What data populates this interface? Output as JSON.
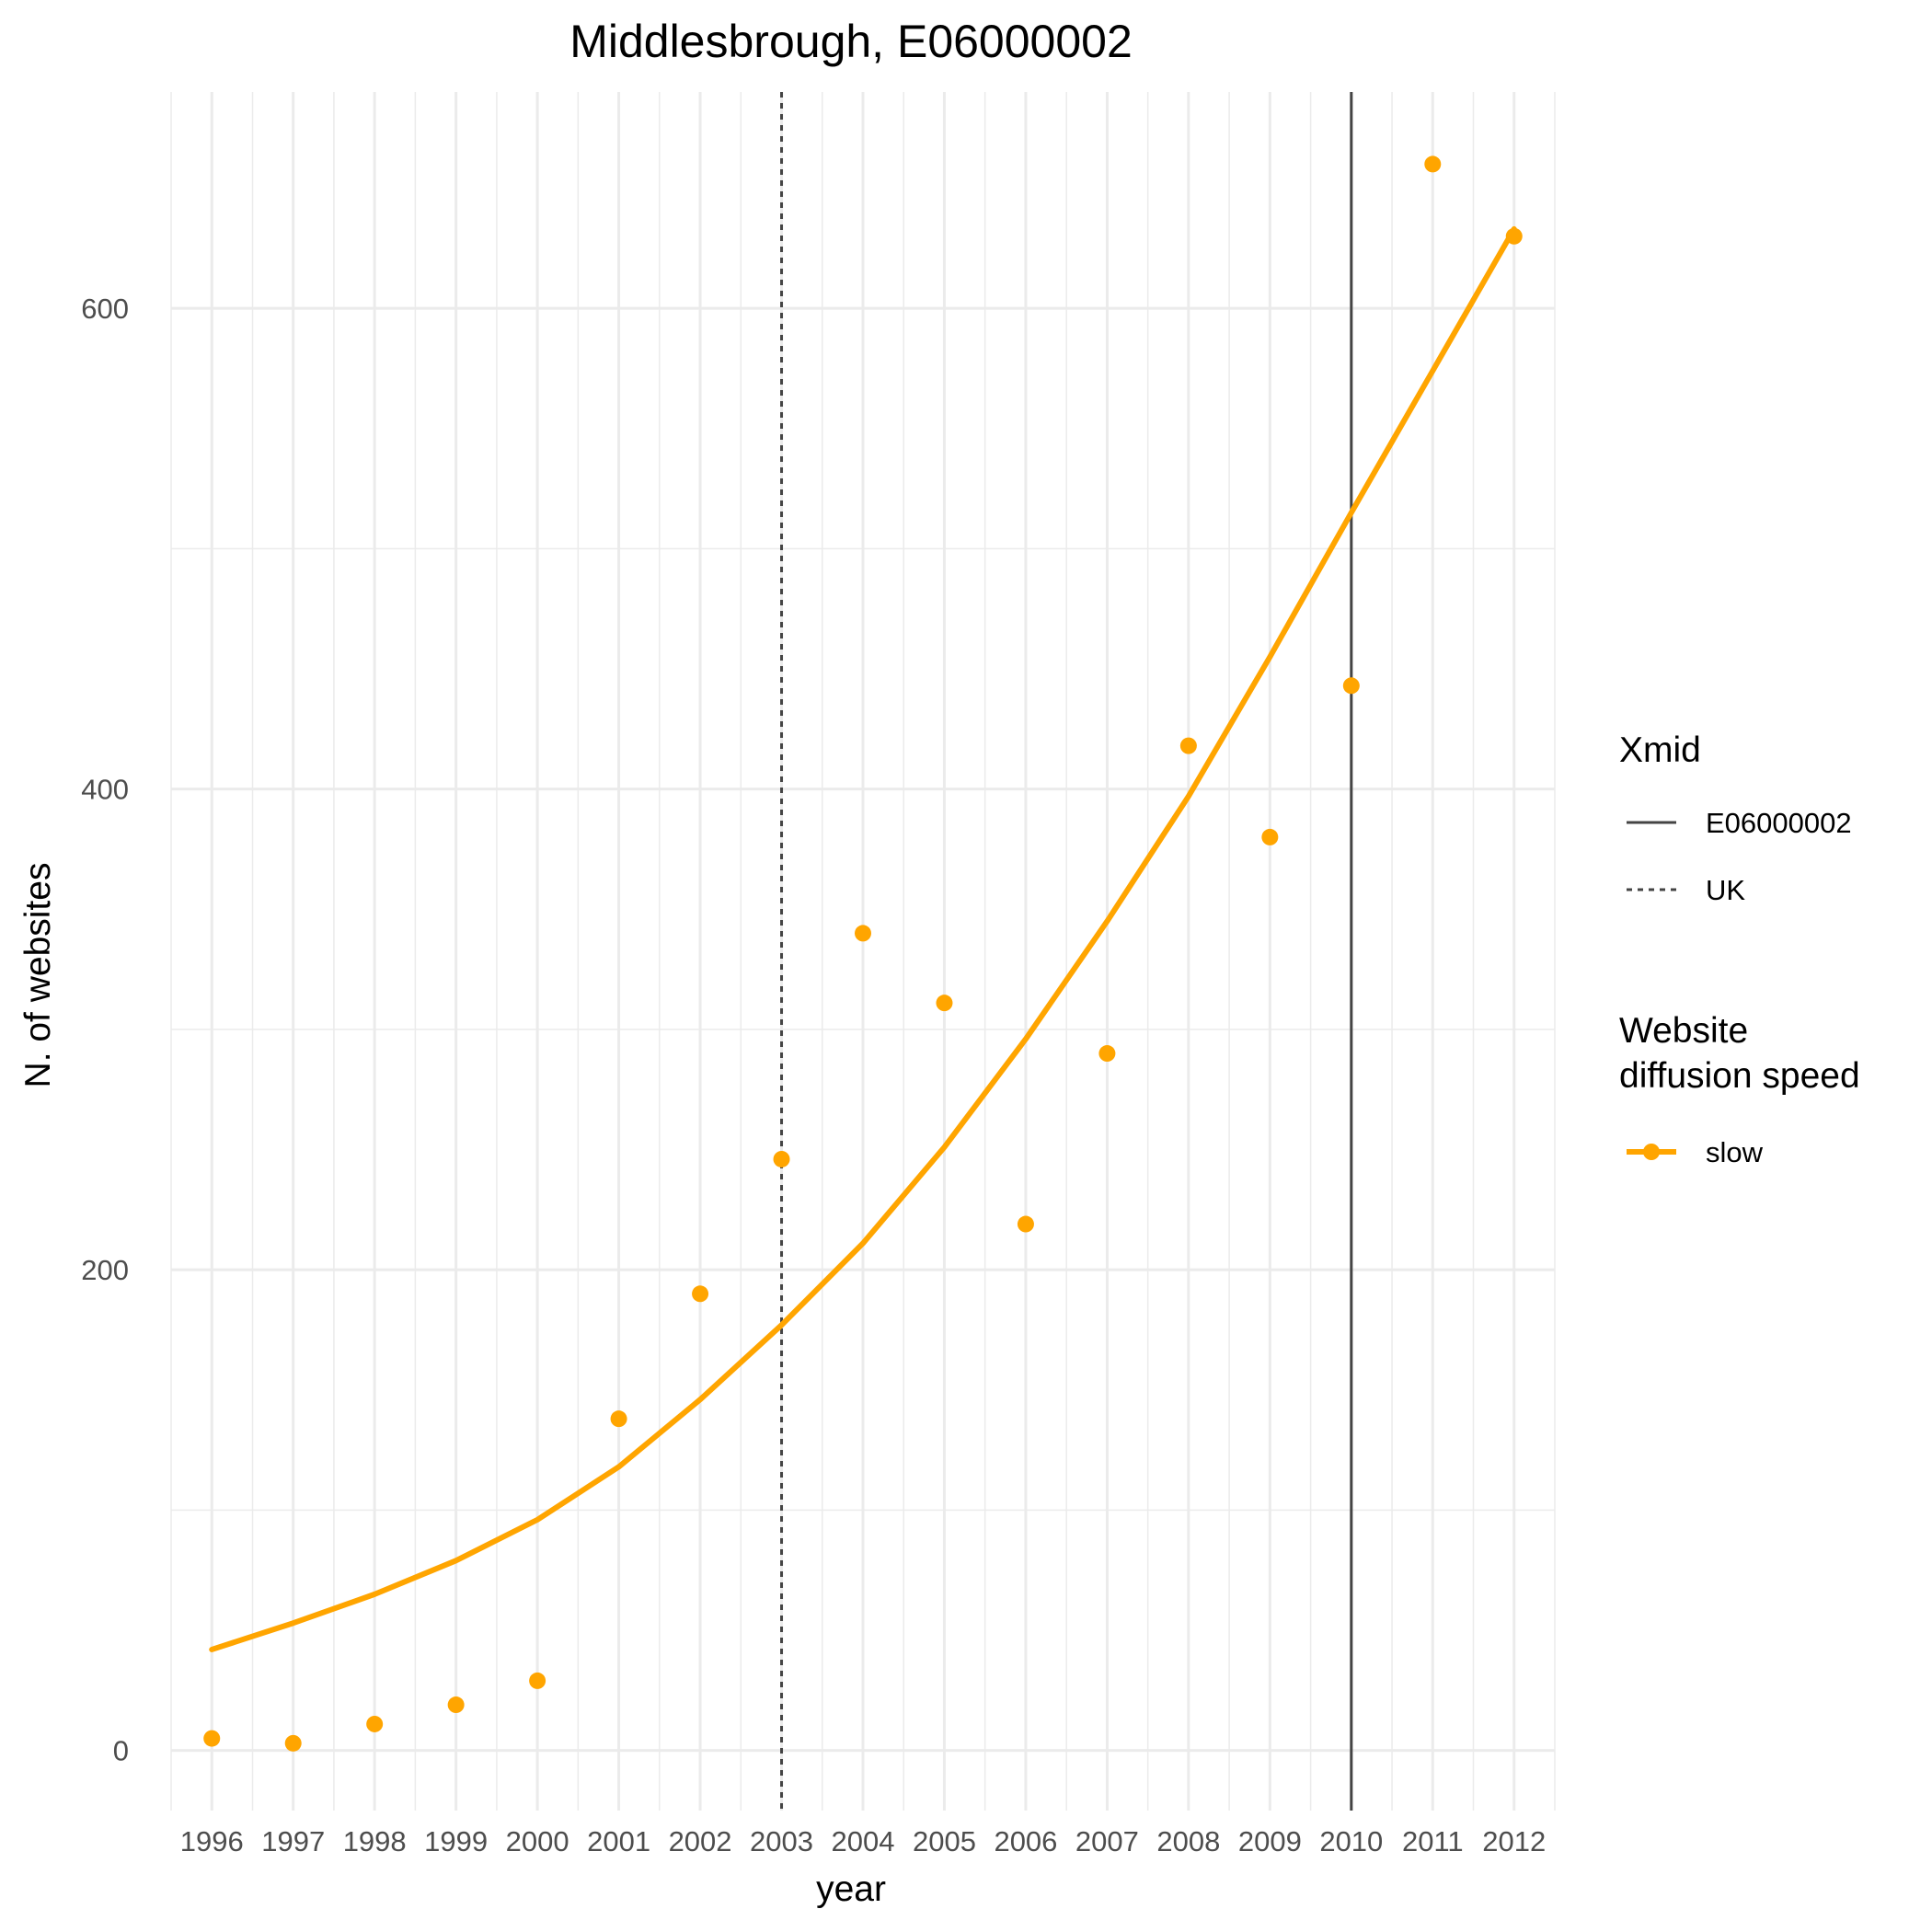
{
  "chart_data": {
    "type": "line",
    "title": "Middlesbrough, E06000002",
    "xlabel": "year",
    "ylabel": "N. of websites",
    "x": [
      1996,
      1997,
      1998,
      1999,
      2000,
      2001,
      2002,
      2003,
      2004,
      2005,
      2006,
      2007,
      2008,
      2009,
      2010,
      2011,
      2012
    ],
    "xlim": [
      1995.5,
      2012.5
    ],
    "ylim": [
      -25,
      690
    ],
    "yticks": [
      0,
      200,
      400,
      600
    ],
    "grid": true,
    "series": [
      {
        "name": "slow",
        "kind": "points",
        "color": "#FFA500",
        "values": [
          5,
          3,
          11,
          19,
          29,
          138,
          190,
          246,
          340,
          311,
          219,
          290,
          418,
          380,
          443,
          660,
          630
        ]
      },
      {
        "name": "slow",
        "kind": "fitted-line",
        "color": "#FFA500",
        "values": [
          42,
          53,
          65,
          79,
          96,
          118,
          146,
          177,
          211,
          251,
          296,
          345,
          397,
          455,
          515,
          574,
          633
        ]
      }
    ],
    "vlines": [
      {
        "x": 2003,
        "label": "UK",
        "style": "dashed",
        "color": "#444444"
      },
      {
        "x": 2010,
        "label": "E06000002",
        "style": "solid",
        "color": "#444444"
      }
    ],
    "legend": {
      "placement": "right",
      "groups": [
        {
          "title": "Xmid",
          "entries": [
            {
              "label": "E06000002",
              "style": "solid"
            },
            {
              "label": "UK",
              "style": "dashed"
            }
          ]
        },
        {
          "title_lines": [
            "Website",
            "diffusion speed"
          ],
          "entries": [
            {
              "label": "slow",
              "style": "line-point"
            }
          ]
        }
      ]
    }
  }
}
